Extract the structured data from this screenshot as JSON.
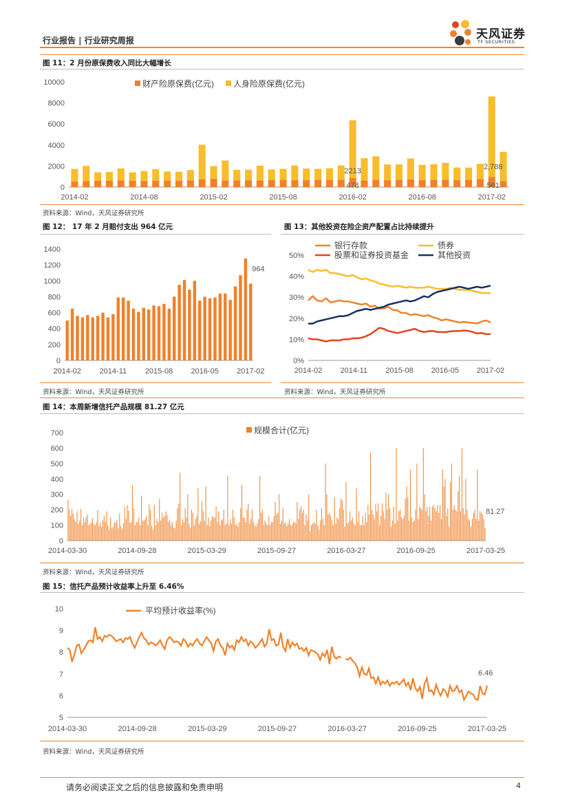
{
  "header": {
    "left_text": "行业报告 | 行业研究周报",
    "logo_name": "天风证券",
    "logo_sub": "TF SECURITIES"
  },
  "colors": {
    "accent": "#e8862e",
    "orange": "#f0812a",
    "yellow": "#f8bd2b",
    "red": "#e2441f",
    "navy": "#16305e"
  },
  "figures": {
    "fig11": {
      "title": "图 11：2 月份原保费收入同比大幅增长",
      "source": "资料来源：Wind，天风证券研究所"
    },
    "fig12": {
      "title": "图 12： 17 年 2 月赔付支出 964 亿元",
      "source": "资料来源：Wind，天风证券研究所"
    },
    "fig13": {
      "title": "图 13：其他投资在险企资产配置占比持续提升",
      "source": "资料来源：Wind，天风证券研究所"
    },
    "fig14": {
      "title": "图 14：本周新增信托产品规模 81.27 亿元",
      "source": "资料来源：Wind，天风证券研究所"
    },
    "fig15": {
      "title": "图 15：信托产品预计收益率上升至 6.46%",
      "source": "资料来源：Wind，天风证券研究所"
    }
  },
  "chart_data": [
    {
      "id": "fig11",
      "type": "bar",
      "stacked": true,
      "ylim": [
        0,
        10000
      ],
      "yticks": [
        0,
        2000,
        4000,
        6000,
        8000,
        10000
      ],
      "xtick_labels": [
        "2014-02",
        "2014-08",
        "2015-02",
        "2015-08",
        "2016-02",
        "2016-08",
        "2017-02"
      ],
      "xtick_index": [
        0,
        6,
        12,
        18,
        24,
        30,
        36
      ],
      "legend_position": "top",
      "series": [
        {
          "name": "财产险原保费(亿元)",
          "color": "#f0812a",
          "values": [
            520,
            560,
            600,
            590,
            620,
            600,
            580,
            610,
            630,
            600,
            620,
            720,
            800,
            620,
            640,
            650,
            640,
            670,
            690,
            650,
            660,
            680,
            690,
            700,
            850,
            640,
            680,
            650,
            700,
            720,
            660,
            680,
            700,
            660,
            700,
            760,
            960,
            561
          ]
        },
        {
          "name": "人身险原保费(亿元)",
          "color": "#f8bd2b",
          "values": [
            1200,
            1450,
            800,
            850,
            1150,
            800,
            950,
            1100,
            850,
            850,
            1000,
            3300,
            1200,
            1900,
            1000,
            1000,
            1400,
            1000,
            1050,
            1400,
            1100,
            1050,
            1100,
            1350,
            5500,
            2100,
            2250,
            1500,
            1450,
            2000,
            1450,
            1500,
            1600,
            1200,
            1150,
            1450,
            7650,
            2788
          ]
        }
      ],
      "data_labels": [
        "2213",
        "478",
        "2,788",
        "561"
      ]
    },
    {
      "id": "fig12",
      "type": "bar",
      "ylim": [
        0,
        1400
      ],
      "yticks": [
        0,
        200,
        400,
        600,
        800,
        1000,
        1200,
        1400
      ],
      "xtick_labels": [
        "2014-02",
        "2014-11",
        "2015-08",
        "2016-05",
        "2017-02"
      ],
      "xtick_index": [
        0,
        9,
        18,
        27,
        36
      ],
      "series": [
        {
          "name": "",
          "color": "#f0812a",
          "values": [
            500,
            650,
            560,
            540,
            570,
            540,
            560,
            600,
            540,
            580,
            790,
            790,
            750,
            650,
            610,
            660,
            640,
            690,
            680,
            710,
            650,
            800,
            950,
            1010,
            890,
            1000,
            750,
            800,
            780,
            790,
            840,
            840,
            760,
            930,
            1070,
            1280,
            964
          ]
        }
      ],
      "data_labels": [
        "964"
      ]
    },
    {
      "id": "fig13",
      "type": "line",
      "ylim": [
        0,
        50
      ],
      "yticks": [
        "0%",
        "10%",
        "20%",
        "30%",
        "40%",
        "50%"
      ],
      "xtick_labels": [
        "2014-02",
        "2014-11",
        "2015-08",
        "2016-05",
        "2017-02"
      ],
      "xtick_index": [
        0,
        9,
        18,
        27,
        36
      ],
      "legend_position": "top",
      "series": [
        {
          "name": "银行存款",
          "color": "#f0812a",
          "values": [
            28.5,
            30.5,
            28.5,
            28.0,
            29.5,
            27.5,
            28.0,
            28.5,
            28.0,
            28.0,
            27.5,
            27.0,
            26.5,
            27.0,
            25.5,
            26.0,
            24.5,
            24.8,
            25.5,
            24.0,
            23.8,
            22.5,
            22.5,
            21.5,
            22.0,
            21.5,
            21.0,
            21.5,
            20.5,
            20.0,
            19.0,
            19.5,
            19.0,
            18.5,
            18.0,
            18.3,
            18.0,
            17.8,
            17.5,
            18.5,
            19.0,
            18.0
          ]
        },
        {
          "name": "债券",
          "color": "#f8bd2b",
          "values": [
            43.0,
            42.0,
            43.0,
            42.5,
            43.0,
            41.5,
            41.5,
            41.0,
            40.5,
            40.0,
            40.5,
            39.5,
            38.5,
            39.0,
            38.0,
            37.5,
            36.5,
            36.0,
            35.5,
            35.0,
            35.5,
            35.0,
            34.5,
            35.0,
            34.5,
            34.5,
            34.5,
            35.0,
            34.5,
            34.0,
            34.0,
            34.0,
            34.5,
            34.0,
            33.5,
            33.5,
            33.5,
            33.0,
            32.5,
            32.0,
            32.0,
            32.0
          ]
        },
        {
          "name": "股票和证券投资基金",
          "color": "#e2441f",
          "values": [
            10.5,
            10.0,
            10.0,
            9.5,
            9.0,
            9.5,
            9.5,
            9.5,
            10.0,
            10.0,
            10.5,
            10.5,
            10.8,
            11.5,
            12.5,
            14.0,
            15.5,
            15.0,
            14.0,
            13.5,
            13.0,
            13.5,
            14.0,
            14.5,
            15.0,
            14.0,
            13.5,
            13.8,
            14.0,
            13.5,
            13.5,
            13.5,
            13.8,
            14.0,
            14.0,
            14.2,
            14.0,
            13.5,
            12.8,
            13.0,
            12.5,
            12.5
          ]
        },
        {
          "name": "其他投资",
          "color": "#16305e",
          "values": [
            17.5,
            17.5,
            18.5,
            19.0,
            19.5,
            20.0,
            20.5,
            21.0,
            21.0,
            21.5,
            22.5,
            23.5,
            24.0,
            24.5,
            24.0,
            24.5,
            25.0,
            25.5,
            26.5,
            27.0,
            27.5,
            28.0,
            28.5,
            28.0,
            28.5,
            29.5,
            30.5,
            30.0,
            31.5,
            32.5,
            33.0,
            33.5,
            34.0,
            34.5,
            35.0,
            34.5,
            34.0,
            34.5,
            35.0,
            34.5,
            35.0,
            35.5
          ]
        }
      ]
    },
    {
      "id": "fig14",
      "type": "bar",
      "ylim": [
        0,
        700
      ],
      "yticks": [
        0,
        100,
        200,
        300,
        400,
        500,
        600,
        700
      ],
      "xtick_labels": [
        "2014-03-30",
        "2014-09-28",
        "2015-03-29",
        "2015-09-27",
        "2016-03-27",
        "2016-09-25",
        "2017-03-25"
      ],
      "legend_position": "top-center",
      "series": [
        {
          "name": "规模合计(亿元)",
          "color": "#f0812a",
          "values": [
            265,
            200,
            160,
            205,
            175,
            140,
            120,
            190,
            110,
            130,
            205,
            100,
            150,
            120,
            150,
            170,
            100,
            105,
            120,
            145,
            110,
            100,
            120,
            200,
            95,
            115,
            90,
            130,
            160,
            120,
            190,
            100,
            70,
            150,
            80,
            90,
            120,
            115,
            135,
            80,
            175,
            95,
            75,
            110,
            220,
            140,
            230,
            195,
            115,
            120,
            360,
            210,
            100,
            120,
            120,
            150,
            100,
            290,
            130,
            130,
            140,
            160,
            100,
            235,
            200,
            95,
            70,
            230,
            100,
            140,
            120,
            270,
            130,
            180,
            150,
            160,
            190,
            165,
            120,
            135,
            100,
            120,
            85,
            80,
            130,
            210,
            240,
            440,
            100,
            140,
            120,
            210,
            150,
            300,
            110,
            85,
            200,
            180,
            100,
            140,
            160,
            340,
            110,
            125,
            255,
            190,
            125,
            350,
            100,
            150,
            95,
            130,
            160,
            150,
            150,
            220,
            120,
            190,
            100,
            130,
            140,
            200,
            100,
            110,
            420,
            100,
            140,
            110,
            200,
            150,
            100,
            110,
            90,
            120,
            210,
            360,
            150,
            150,
            120,
            200,
            240,
            110,
            140,
            200,
            120,
            100,
            90,
            110,
            140,
            420,
            180,
            200,
            100,
            130,
            110,
            100,
            160,
            100,
            120,
            120,
            160,
            250,
            170,
            180,
            300,
            110,
            130,
            210,
            110,
            120,
            95,
            110,
            140,
            100,
            100,
            120,
            120,
            110,
            250,
            140,
            200,
            220,
            180,
            200,
            100,
            170,
            130,
            300,
            60,
            100,
            110,
            120,
            110,
            200,
            100,
            70,
            130,
            210,
            140,
            100,
            500,
            300,
            170,
            180,
            160,
            130,
            100,
            280,
            110,
            150,
            140,
            210,
            270,
            260,
            200,
            90,
            380,
            110,
            120,
            190,
            130,
            150,
            110,
            100,
            340,
            120,
            190,
            100,
            100,
            160,
            100,
            180,
            120,
            230,
            170,
            570,
            200,
            170,
            140,
            240,
            190,
            240,
            100,
            160,
            240,
            190,
            140,
            310,
            200,
            300,
            210,
            90,
            130,
            220,
            110,
            600,
            130,
            190,
            200,
            150,
            140,
            160,
            270,
            350,
            280,
            130,
            460,
            150,
            120,
            130,
            200,
            500,
            140,
            220,
            210,
            200,
            600,
            300,
            190,
            220,
            160,
            220,
            130,
            220,
            230,
            210,
            190,
            230,
            180,
            230,
            140,
            460,
            350,
            400,
            160,
            210,
            90,
            380,
            500,
            200,
            230,
            200,
            190,
            320,
            420,
            190,
            600,
            210,
            170,
            400,
            200,
            140,
            130,
            90,
            140,
            180,
            200,
            140,
            460,
            130,
            190,
            180,
            170,
            140,
            81.27
          ]
        }
      ],
      "data_labels": [
        "81.27"
      ]
    },
    {
      "id": "fig15",
      "type": "line",
      "ylim": [
        5,
        10
      ],
      "yticks": [
        5,
        6,
        7,
        8,
        9,
        10
      ],
      "xtick_labels": [
        "2014-03-30",
        "2014-09-28",
        "2015-03-29",
        "2015-09-27",
        "2016-03-27",
        "2016-09-25",
        "2017-03-25"
      ],
      "legend_position": "top-left",
      "series": [
        {
          "name": "平均预计收益率(%)",
          "color": "#f0812a",
          "values": [
            8.2,
            8.1,
            7.55,
            7.9,
            8.3,
            8.35,
            7.95,
            8.1,
            8.3,
            8.5,
            8.55,
            8.45,
            9.15,
            8.6,
            8.7,
            8.5,
            8.75,
            8.7,
            8.8,
            8.75,
            8.65,
            8.5,
            8.55,
            8.6,
            8.45,
            8.65,
            8.6,
            8.7,
            8.4,
            8.2,
            8.45,
            8.7,
            8.9,
            8.65,
            8.55,
            8.35,
            8.45,
            8.4,
            8.3,
            8.4,
            8.55,
            8.3,
            8.15,
            8.55,
            8.7,
            8.6,
            8.45,
            8.5,
            8.45,
            8.3,
            8.6,
            8.5,
            8.25,
            8.4,
            8.3,
            8.5,
            8.6,
            8.4,
            8.3,
            8.5,
            8.7,
            8.55,
            8.4,
            8.05,
            8.5,
            8.6,
            8.3,
            8.2,
            7.85,
            8.4,
            8.2,
            8.3,
            8.1,
            8.55,
            8.45,
            8.7,
            8.5,
            8.6,
            8.3,
            8.5,
            8.4,
            8.2,
            8.3,
            8.45,
            8.6,
            8.25,
            8.4,
            9.05,
            8.55,
            8.6,
            8.3,
            8.35,
            8.9,
            8.25,
            8.05,
            8.6,
            8.2,
            8.45,
            8.3,
            8.4,
            8.15,
            8.2,
            8.05,
            8.2,
            7.85,
            8.1,
            8.05,
            8.0,
            7.9,
            7.65,
            7.95,
            7.8,
            8.1,
            7.45,
            8.25,
            7.8,
            7.7,
            7.8,
            7.75,
            null,
            7.7,
            7.65,
            7.75,
            7.6,
            7.5,
            7.3,
            6.9,
            7.3,
            7.0,
            6.95,
            7.25,
            6.8,
            6.85,
            6.55,
            6.85,
            6.5,
            6.65,
            6.55,
            6.7,
            6.45,
            6.6,
            6.55,
            6.65,
            6.5,
            6.6,
            6.75,
            6.45,
            6.6,
            6.25,
            6.8,
            6.35,
            6.2,
            6.4,
            5.85,
            6.55,
            6.8,
            6.2,
            6.25,
            6.05,
            6.5,
            6.2,
            6.0,
            6.3,
            6.2,
            5.95,
            6.45,
            6.2,
            6.25,
            6.45,
            6.15,
            6.25,
            5.8,
            6.0,
            6.2,
            6.1,
            6.05,
            5.85,
            5.8,
            6.45,
            6.1,
            6.05,
            6.46
          ]
        }
      ],
      "data_labels": [
        "6.46"
      ]
    }
  ],
  "footer": {
    "disclaimer": "请务必阅读正文之后的信息披露和免责申明",
    "page": "4"
  }
}
